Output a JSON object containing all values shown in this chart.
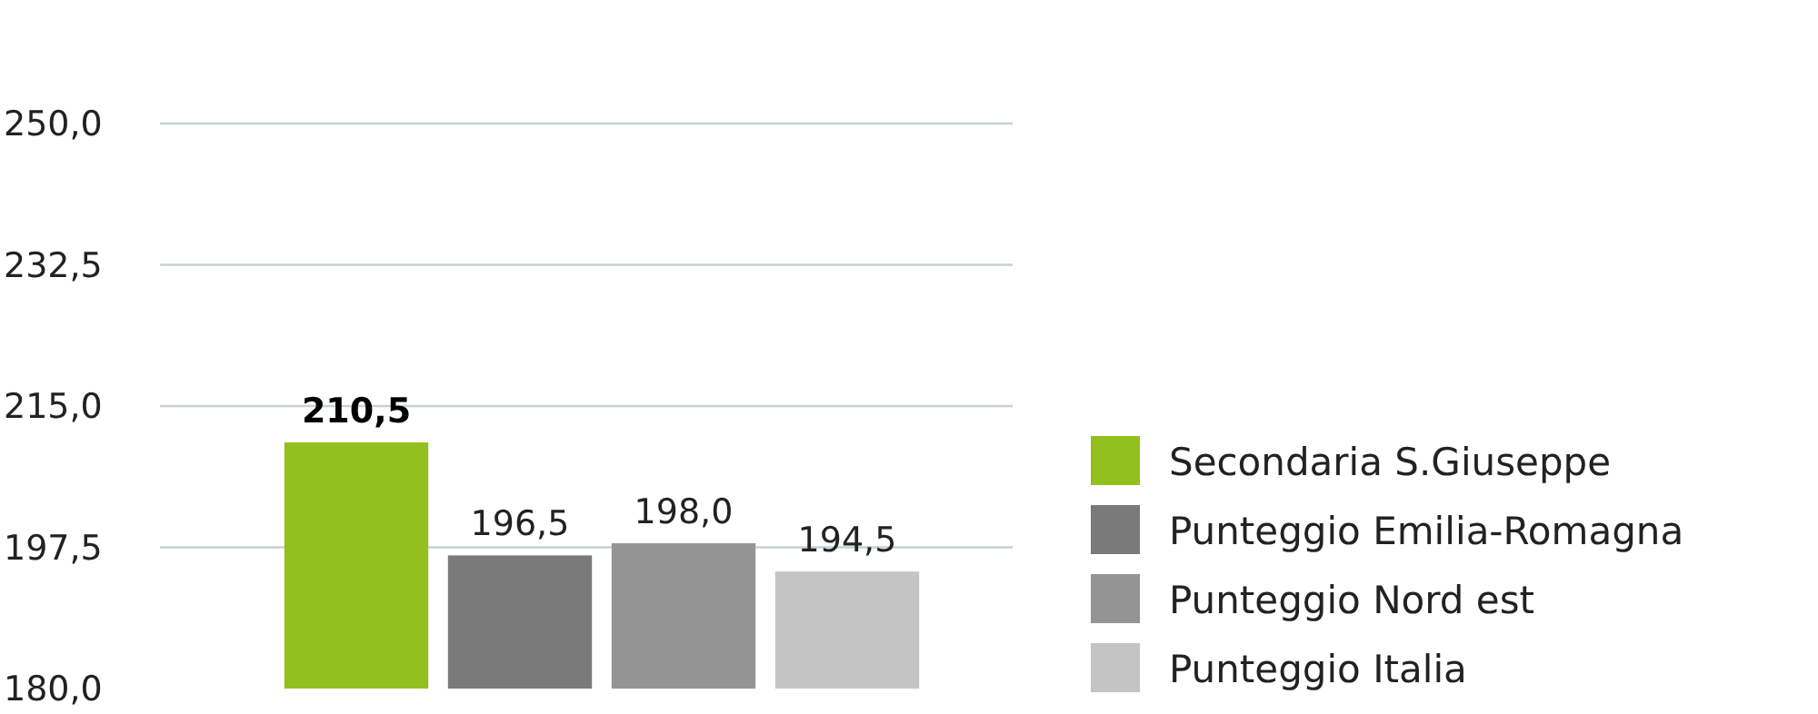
{
  "chart_data": {
    "type": "bar",
    "categories": [
      null
    ],
    "series": [
      {
        "name": "Secondaria S.Giuseppe",
        "color": "#93c01f",
        "values": [
          210.5
        ],
        "value_labels": [
          "210,5"
        ]
      },
      {
        "name": "Punteggio Emilia-Romagna",
        "color": "#7a7a7a",
        "values": [
          196.5
        ],
        "value_labels": [
          "196,5"
        ]
      },
      {
        "name": "Punteggio Nord est",
        "color": "#949494",
        "values": [
          198.0
        ],
        "value_labels": [
          "198,0"
        ]
      },
      {
        "name": "Punteggio Italia",
        "color": "#c4c4c4",
        "values": [
          194.5
        ],
        "value_labels": [
          "194,5"
        ]
      }
    ],
    "ylim": [
      180,
      250
    ],
    "yticks": [
      {
        "value": 180,
        "label": "180,0"
      },
      {
        "value": 197.5,
        "label": "197,5"
      },
      {
        "value": 215,
        "label": "215,0"
      },
      {
        "value": 232.5,
        "label": "232,5"
      },
      {
        "value": 250,
        "label": "250,0"
      }
    ],
    "grid": "y",
    "legend": "right"
  }
}
